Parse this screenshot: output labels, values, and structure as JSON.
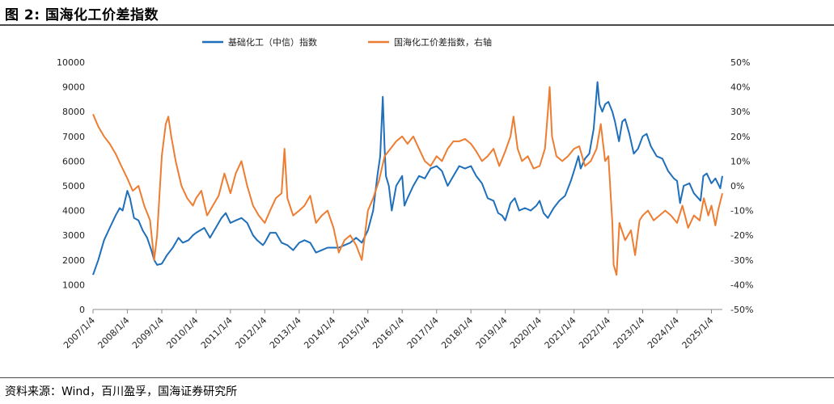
{
  "figure": {
    "title": "图 2:  国海化工价差指数",
    "source": "资料来源：Wind，百川盈孚，国海证券研究所"
  },
  "chart_data": {
    "type": "line",
    "x_type": "date",
    "x_ticks": [
      "2007/1/4",
      "2008/1/4",
      "2009/1/4",
      "2010/1/4",
      "2011/1/4",
      "2012/1/4",
      "2013/1/4",
      "2014/1/4",
      "2015/1/4",
      "2016/1/4",
      "2017/1/4",
      "2018/1/4",
      "2019/1/4",
      "2020/1/4",
      "2021/1/4",
      "2022/1/4",
      "2023/1/4",
      "2024/1/4",
      "2025/1/4"
    ],
    "x_range": [
      "2007/1/4",
      "2025/4/30"
    ],
    "left_axis": {
      "ylim": [
        0,
        10000
      ],
      "ticks": [
        "0",
        "1000",
        "2000",
        "3000",
        "4000",
        "5000",
        "6000",
        "7000",
        "8000",
        "9000",
        "10000"
      ]
    },
    "right_axis": {
      "ylim": [
        -50,
        50
      ],
      "unit": "%",
      "ticks": [
        "-50%",
        "-40%",
        "-30%",
        "-20%",
        "-10%",
        "0%",
        "10%",
        "20%",
        "30%",
        "40%",
        "50%"
      ]
    },
    "legend_position": "top",
    "series": [
      {
        "name": "基础化工（中信）指数",
        "axis": "left",
        "color": "#1f6fba",
        "points": [
          [
            "2007/1/4",
            1400
          ],
          [
            "2007/3/1",
            2000
          ],
          [
            "2007/5/1",
            2800
          ],
          [
            "2007/7/1",
            3300
          ],
          [
            "2007/9/1",
            3800
          ],
          [
            "2007/10/15",
            4100
          ],
          [
            "2007/11/15",
            4000
          ],
          [
            "2008/1/4",
            4800
          ],
          [
            "2008/2/1",
            4500
          ],
          [
            "2008/3/15",
            3700
          ],
          [
            "2008/5/1",
            3600
          ],
          [
            "2008/6/15",
            3200
          ],
          [
            "2008/8/1",
            2900
          ],
          [
            "2008/9/15",
            2400
          ],
          [
            "2008/10/15",
            2000
          ],
          [
            "2008/11/15",
            1800
          ],
          [
            "2009/1/4",
            1850
          ],
          [
            "2009/3/1",
            2200
          ],
          [
            "2009/5/1",
            2500
          ],
          [
            "2009/7/1",
            2900
          ],
          [
            "2009/8/15",
            2700
          ],
          [
            "2009/10/15",
            2800
          ],
          [
            "2009/12/1",
            3000
          ],
          [
            "2010/1/4",
            3100
          ],
          [
            "2010/4/1",
            3300
          ],
          [
            "2010/6/1",
            2900
          ],
          [
            "2010/8/1",
            3300
          ],
          [
            "2010/10/1",
            3700
          ],
          [
            "2010/11/15",
            3900
          ],
          [
            "2011/1/4",
            3500
          ],
          [
            "2011/3/1",
            3600
          ],
          [
            "2011/5/1",
            3700
          ],
          [
            "2011/7/1",
            3500
          ],
          [
            "2011/9/1",
            3000
          ],
          [
            "2011/10/15",
            2800
          ],
          [
            "2011/12/15",
            2600
          ],
          [
            "2012/1/4",
            2700
          ],
          [
            "2012/3/1",
            3100
          ],
          [
            "2012/5/1",
            3100
          ],
          [
            "2012/7/1",
            2700
          ],
          [
            "2012/9/1",
            2600
          ],
          [
            "2012/11/1",
            2400
          ],
          [
            "2013/1/4",
            2700
          ],
          [
            "2013/3/1",
            2800
          ],
          [
            "2013/5/1",
            2700
          ],
          [
            "2013/7/1",
            2300
          ],
          [
            "2013/9/1",
            2400
          ],
          [
            "2013/11/1",
            2500
          ],
          [
            "2014/1/4",
            2500
          ],
          [
            "2014/3/1",
            2500
          ],
          [
            "2014/5/1",
            2600
          ],
          [
            "2014/7/1",
            2700
          ],
          [
            "2014/9/1",
            2900
          ],
          [
            "2014/11/1",
            2700
          ],
          [
            "2015/1/4",
            3200
          ],
          [
            "2015/3/1",
            4000
          ],
          [
            "2015/4/15",
            5400
          ],
          [
            "2015/5/15",
            6200
          ],
          [
            "2015/6/12",
            8600
          ],
          [
            "2015/7/1",
            6500
          ],
          [
            "2015/7/15",
            5400
          ],
          [
            "2015/8/15",
            5000
          ],
          [
            "2015/9/15",
            4000
          ],
          [
            "2015/11/1",
            5000
          ],
          [
            "2016/1/4",
            5400
          ],
          [
            "2016/1/28",
            4200
          ],
          [
            "2016/3/1",
            4500
          ],
          [
            "2016/5/1",
            5000
          ],
          [
            "2016/7/1",
            5400
          ],
          [
            "2016/9/1",
            5300
          ],
          [
            "2016/11/1",
            5700
          ],
          [
            "2017/1/4",
            5800
          ],
          [
            "2017/3/1",
            5600
          ],
          [
            "2017/5/1",
            5000
          ],
          [
            "2017/7/1",
            5400
          ],
          [
            "2017/9/1",
            5800
          ],
          [
            "2017/11/1",
            5700
          ],
          [
            "2018/1/4",
            5800
          ],
          [
            "2018/3/1",
            5400
          ],
          [
            "2018/5/1",
            5100
          ],
          [
            "2018/7/1",
            4500
          ],
          [
            "2018/9/1",
            4400
          ],
          [
            "2018/10/20",
            3900
          ],
          [
            "2018/12/1",
            3800
          ],
          [
            "2019/1/4",
            3600
          ],
          [
            "2019/3/1",
            4300
          ],
          [
            "2019/4/15",
            4500
          ],
          [
            "2019/6/1",
            4000
          ],
          [
            "2019/8/1",
            4100
          ],
          [
            "2019/10/1",
            4000
          ],
          [
            "2019/12/1",
            4200
          ],
          [
            "2020/1/4",
            4400
          ],
          [
            "2020/2/15",
            3900
          ],
          [
            "2020/4/1",
            3700
          ],
          [
            "2020/6/1",
            4100
          ],
          [
            "2020/8/1",
            4400
          ],
          [
            "2020/10/1",
            4600
          ],
          [
            "2020/12/1",
            5200
          ],
          [
            "2021/1/4",
            5600
          ],
          [
            "2021/2/20",
            6200
          ],
          [
            "2021/3/15",
            5700
          ],
          [
            "2021/5/1",
            6100
          ],
          [
            "2021/6/15",
            6300
          ],
          [
            "2021/8/1",
            7300
          ],
          [
            "2021/9/10",
            9200
          ],
          [
            "2021/10/1",
            8300
          ],
          [
            "2021/11/1",
            8000
          ],
          [
            "2021/12/1",
            8300
          ],
          [
            "2022/1/4",
            8400
          ],
          [
            "2022/2/15",
            8000
          ],
          [
            "2022/3/15",
            7600
          ],
          [
            "2022/4/27",
            6800
          ],
          [
            "2022/6/1",
            7600
          ],
          [
            "2022/7/1",
            7700
          ],
          [
            "2022/8/15",
            7100
          ],
          [
            "2022/10/1",
            6300
          ],
          [
            "2022/11/15",
            6500
          ],
          [
            "2023/1/4",
            7000
          ],
          [
            "2023/2/15",
            7100
          ],
          [
            "2023/4/1",
            6600
          ],
          [
            "2023/6/1",
            6200
          ],
          [
            "2023/8/1",
            6100
          ],
          [
            "2023/10/1",
            5600
          ],
          [
            "2023/12/1",
            5300
          ],
          [
            "2024/1/4",
            5200
          ],
          [
            "2024/2/5",
            4300
          ],
          [
            "2024/3/15",
            5000
          ],
          [
            "2024/5/15",
            5100
          ],
          [
            "2024/7/1",
            4700
          ],
          [
            "2024/9/10",
            4400
          ],
          [
            "2024/10/10",
            5400
          ],
          [
            "2024/11/15",
            5500
          ],
          [
            "2025/1/4",
            5100
          ],
          [
            "2025/2/15",
            5300
          ],
          [
            "2025/4/8",
            4900
          ],
          [
            "2025/4/30",
            5400
          ]
        ]
      },
      {
        "name": "国海化工价差指数，右轴",
        "axis": "right",
        "color": "#ed7d31",
        "points": [
          [
            "2007/1/4",
            29
          ],
          [
            "2007/3/1",
            24
          ],
          [
            "2007/5/1",
            20
          ],
          [
            "2007/7/1",
            17
          ],
          [
            "2007/9/1",
            13
          ],
          [
            "2007/11/1",
            8
          ],
          [
            "2008/1/4",
            3
          ],
          [
            "2008/3/1",
            -2
          ],
          [
            "2008/5/1",
            0
          ],
          [
            "2008/7/1",
            -8
          ],
          [
            "2008/9/1",
            -14
          ],
          [
            "2008/10/15",
            -30
          ],
          [
            "2008/11/15",
            -20
          ],
          [
            "2009/1/4",
            12
          ],
          [
            "2009/2/15",
            25
          ],
          [
            "2009/3/15",
            28
          ],
          [
            "2009/4/15",
            20
          ],
          [
            "2009/6/1",
            10
          ],
          [
            "2009/8/1",
            0
          ],
          [
            "2009/10/1",
            -5
          ],
          [
            "2009/12/1",
            -8
          ],
          [
            "2010/1/4",
            -5
          ],
          [
            "2010/3/1",
            -2
          ],
          [
            "2010/5/1",
            -12
          ],
          [
            "2010/7/1",
            -8
          ],
          [
            "2010/9/1",
            -4
          ],
          [
            "2010/11/1",
            5
          ],
          [
            "2011/1/4",
            -3
          ],
          [
            "2011/3/1",
            5
          ],
          [
            "2011/5/1",
            10
          ],
          [
            "2011/7/1",
            0
          ],
          [
            "2011/9/1",
            -8
          ],
          [
            "2011/11/1",
            -12
          ],
          [
            "2012/1/4",
            -15
          ],
          [
            "2012/3/1",
            -10
          ],
          [
            "2012/5/1",
            -5
          ],
          [
            "2012/7/1",
            -3
          ],
          [
            "2012/8/1",
            15
          ],
          [
            "2012/9/1",
            -5
          ],
          [
            "2012/11/1",
            -12
          ],
          [
            "2013/1/4",
            -10
          ],
          [
            "2013/3/1",
            -8
          ],
          [
            "2013/5/1",
            -4
          ],
          [
            "2013/7/1",
            -15
          ],
          [
            "2013/9/1",
            -12
          ],
          [
            "2013/11/1",
            -10
          ],
          [
            "2014/1/4",
            -17
          ],
          [
            "2014/3/1",
            -27
          ],
          [
            "2014/5/1",
            -22
          ],
          [
            "2014/7/1",
            -20
          ],
          [
            "2014/9/1",
            -24
          ],
          [
            "2014/11/1",
            -30
          ],
          [
            "2015/1/4",
            -10
          ],
          [
            "2015/3/1",
            -5
          ],
          [
            "2015/5/1",
            2
          ],
          [
            "2015/7/1",
            12
          ],
          [
            "2015/9/1",
            15
          ],
          [
            "2015/11/1",
            18
          ],
          [
            "2016/1/4",
            20
          ],
          [
            "2016/3/1",
            17
          ],
          [
            "2016/5/1",
            20
          ],
          [
            "2016/7/1",
            15
          ],
          [
            "2016/9/1",
            10
          ],
          [
            "2016/11/1",
            8
          ],
          [
            "2017/1/4",
            12
          ],
          [
            "2017/3/1",
            10
          ],
          [
            "2017/5/1",
            15
          ],
          [
            "2017/7/1",
            18
          ],
          [
            "2017/9/1",
            18
          ],
          [
            "2017/11/1",
            19
          ],
          [
            "2018/1/4",
            17
          ],
          [
            "2018/3/1",
            14
          ],
          [
            "2018/5/1",
            10
          ],
          [
            "2018/7/1",
            12
          ],
          [
            "2018/9/1",
            15
          ],
          [
            "2018/11/1",
            8
          ],
          [
            "2019/1/4",
            14
          ],
          [
            "2019/3/1",
            20
          ],
          [
            "2019/4/1",
            28
          ],
          [
            "2019/5/15",
            15
          ],
          [
            "2019/7/1",
            10
          ],
          [
            "2019/9/1",
            12
          ],
          [
            "2019/11/1",
            7
          ],
          [
            "2020/1/4",
            8
          ],
          [
            "2020/3/1",
            15
          ],
          [
            "2020/4/1",
            30
          ],
          [
            "2020/4/20",
            40
          ],
          [
            "2020/5/15",
            20
          ],
          [
            "2020/7/1",
            12
          ],
          [
            "2020/9/1",
            10
          ],
          [
            "2020/11/1",
            12
          ],
          [
            "2021/1/4",
            15
          ],
          [
            "2021/3/1",
            16
          ],
          [
            "2021/5/1",
            8
          ],
          [
            "2021/7/1",
            10
          ],
          [
            "2021/9/1",
            15
          ],
          [
            "2021/10/15",
            25
          ],
          [
            "2021/12/1",
            10
          ],
          [
            "2022/1/4",
            12
          ],
          [
            "2022/2/15",
            -15
          ],
          [
            "2022/3/1",
            -32
          ],
          [
            "2022/4/1",
            -36
          ],
          [
            "2022/5/1",
            -15
          ],
          [
            "2022/7/1",
            -22
          ],
          [
            "2022/9/1",
            -18
          ],
          [
            "2022/10/15",
            -28
          ],
          [
            "2022/12/1",
            -14
          ],
          [
            "2023/1/4",
            -12
          ],
          [
            "2023/3/1",
            -10
          ],
          [
            "2023/5/1",
            -14
          ],
          [
            "2023/7/1",
            -12
          ],
          [
            "2023/9/1",
            -10
          ],
          [
            "2023/11/1",
            -12
          ],
          [
            "2024/1/4",
            -15
          ],
          [
            "2024/3/1",
            -8
          ],
          [
            "2024/5/1",
            -17
          ],
          [
            "2024/7/1",
            -12
          ],
          [
            "2024/9/1",
            -14
          ],
          [
            "2024/10/15",
            -5
          ],
          [
            "2024/12/1",
            -12
          ],
          [
            "2025/1/4",
            -8
          ],
          [
            "2025/2/15",
            -16
          ],
          [
            "2025/3/15",
            -10
          ],
          [
            "2025/4/30",
            -3
          ]
        ]
      }
    ]
  }
}
